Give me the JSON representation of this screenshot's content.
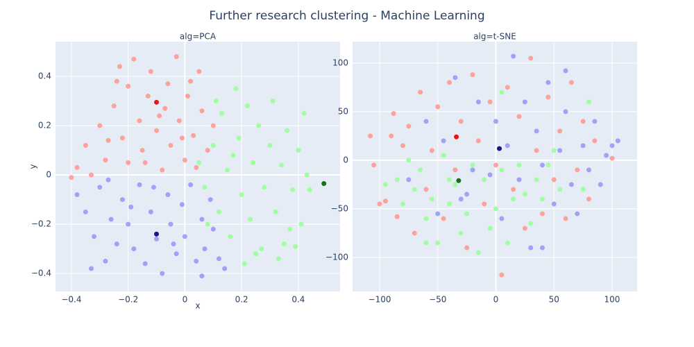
{
  "title": "Further research clustering - Machine Learning",
  "chart_data": [
    {
      "type": "scatter",
      "title": "alg=PCA",
      "x_label": "x",
      "y_label": "y",
      "grid": true,
      "xlim": [
        -0.456,
        0.547
      ],
      "ylim": [
        -0.473,
        0.541
      ],
      "xticks": [
        {
          "value": -0.4,
          "label": "−0.4"
        },
        {
          "value": -0.2,
          "label": "−0.2"
        },
        0,
        0.2,
        0.4
      ],
      "yticks": [
        {
          "value": -0.4,
          "label": "−0.4"
        },
        {
          "value": -0.2,
          "label": "−0.2"
        },
        0,
        0.2,
        0.4
      ],
      "series": [
        {
          "color": "#ff9a8f",
          "x": [
            -0.38,
            -0.35,
            -0.3,
            -0.28,
            -0.25,
            -0.22,
            -0.2,
            -0.2,
            -0.18,
            -0.16,
            -0.15,
            -0.13,
            -0.12,
            -0.1,
            -0.08,
            -0.07,
            -0.06,
            -0.05,
            -0.03,
            -0.02,
            0,
            0.01,
            0.03,
            0.05,
            0.06,
            0.08,
            0.1,
            -0.33,
            -0.27,
            -0.24,
            -0.14,
            -0.09,
            -0.01,
            0.02,
            -0.4,
            -0.23,
            0.04
          ],
          "values": [
            0.03,
            0.12,
            0.2,
            0.06,
            0.28,
            0.15,
            0.36,
            0.05,
            0.47,
            0.22,
            0.1,
            0.32,
            0.42,
            0.18,
            0.02,
            0.27,
            0.37,
            0.12,
            0.48,
            0.22,
            0.06,
            0.32,
            0.16,
            0.42,
            0.26,
            0.1,
            0.2,
            0.0,
            0.14,
            0.38,
            0.05,
            0.24,
            0.15,
            0.38,
            -0.01,
            0.44,
            0.03
          ]
        },
        {
          "color": "#9999f5",
          "x": [
            -0.38,
            -0.35,
            -0.32,
            -0.3,
            -0.28,
            -0.26,
            -0.24,
            -0.22,
            -0.2,
            -0.18,
            -0.16,
            -0.14,
            -0.12,
            -0.1,
            -0.08,
            -0.06,
            -0.05,
            -0.03,
            -0.01,
            0,
            0.02,
            0.04,
            0.06,
            0.07,
            0.09,
            0.1,
            -0.27,
            -0.19,
            -0.11,
            -0.04,
            0.06,
            0.14,
            -0.33,
            0.12
          ],
          "values": [
            -0.08,
            -0.15,
            -0.25,
            -0.05,
            -0.35,
            -0.18,
            -0.28,
            -0.1,
            -0.2,
            -0.3,
            -0.04,
            -0.36,
            -0.15,
            -0.26,
            -0.4,
            -0.08,
            -0.2,
            -0.32,
            -0.12,
            -0.25,
            -0.04,
            -0.35,
            -0.18,
            -0.3,
            -0.1,
            -0.22,
            -0.02,
            -0.13,
            -0.05,
            -0.28,
            -0.41,
            -0.38,
            -0.38,
            -0.34
          ]
        },
        {
          "color": "#99ff99",
          "x": [
            0.05,
            0.07,
            0.1,
            0.12,
            0.13,
            0.15,
            0.16,
            0.18,
            0.19,
            0.2,
            0.22,
            0.23,
            0.24,
            0.26,
            0.27,
            0.28,
            0.3,
            0.31,
            0.32,
            0.33,
            0.34,
            0.36,
            0.37,
            0.38,
            0.4,
            0.41,
            0.42,
            0.43,
            0.44,
            0.25,
            0.17,
            0.11,
            0.21,
            0.08,
            0.35,
            0.39
          ],
          "values": [
            0.05,
            -0.05,
            0.12,
            -0.15,
            0.25,
            0.02,
            -0.25,
            0.35,
            0.15,
            -0.08,
            0.28,
            -0.18,
            0.05,
            0.2,
            -0.3,
            -0.05,
            0.12,
            0.3,
            -0.15,
            -0.34,
            0.04,
            0.18,
            -0.22,
            -0.06,
            0.1,
            -0.2,
            0.25,
            0.0,
            -0.06,
            -0.32,
            0.08,
            0.3,
            -0.36,
            -0.2,
            -0.28,
            -0.29
          ]
        },
        {
          "color": "#e00000",
          "x": [
            -0.1
          ],
          "values": [
            0.295
          ]
        },
        {
          "color": "#000080",
          "x": [
            -0.1
          ],
          "values": [
            -0.24
          ]
        },
        {
          "color": "#006400",
          "x": [
            0.49
          ],
          "values": [
            -0.035
          ]
        }
      ]
    },
    {
      "type": "scatter",
      "title": "alg=t-SNE",
      "grid": true,
      "xlim": [
        -123.3,
        121.5
      ],
      "ylim": [
        -135,
        122
      ],
      "xticks": [
        {
          "value": -100,
          "label": "−100"
        },
        {
          "value": -50,
          "label": "−50"
        },
        0,
        50,
        100
      ],
      "yticks": [
        {
          "value": -100,
          "label": "−100"
        },
        {
          "value": -50,
          "label": "−50"
        },
        0,
        50,
        100
      ],
      "series": [
        {
          "color": "#ff9a8f",
          "x": [
            -108,
            -105,
            -95,
            -88,
            -85,
            -80,
            -75,
            -70,
            -65,
            -60,
            -55,
            -50,
            -45,
            -40,
            -35,
            -30,
            -25,
            -20,
            -15,
            -10,
            -5,
            0,
            5,
            10,
            15,
            20,
            25,
            30,
            35,
            40,
            45,
            50,
            55,
            60,
            65,
            70,
            75,
            80,
            85,
            100,
            -100,
            -90
          ],
          "values": [
            25,
            -5,
            -42,
            48,
            -58,
            15,
            35,
            -75,
            70,
            -30,
            10,
            55,
            -60,
            80,
            -10,
            40,
            -90,
            88,
            20,
            -45,
            60,
            -5,
            -118,
            75,
            -30,
            45,
            -70,
            105,
            10,
            -55,
            65,
            -20,
            30,
            -60,
            80,
            -10,
            40,
            -40,
            20,
            2,
            -45,
            25
          ]
        },
        {
          "color": "#9999f5",
          "x": [
            -75,
            -60,
            -45,
            -35,
            -25,
            -15,
            -5,
            0,
            5,
            10,
            15,
            20,
            25,
            30,
            35,
            40,
            45,
            50,
            55,
            60,
            65,
            70,
            75,
            80,
            85,
            90,
            95,
            100,
            105,
            60,
            40,
            -30,
            -50,
            -20
          ],
          "values": [
            -20,
            40,
            20,
            85,
            -35,
            60,
            -15,
            40,
            -60,
            15,
            107,
            -20,
            60,
            -90,
            30,
            -5,
            80,
            -45,
            10,
            50,
            -25,
            -55,
            15,
            -10,
            40,
            -25,
            5,
            15,
            20,
            92,
            -90,
            -40,
            -55,
            -10
          ]
        },
        {
          "color": "#99ff99",
          "x": [
            -95,
            -85,
            -80,
            -75,
            -70,
            -65,
            -60,
            -55,
            -50,
            -45,
            -40,
            -35,
            -30,
            -25,
            -20,
            -15,
            -10,
            -5,
            0,
            5,
            10,
            15,
            20,
            25,
            30,
            35,
            40,
            45,
            50,
            55,
            -40,
            -60,
            75,
            80,
            5
          ],
          "values": [
            -25,
            -20,
            -45,
            0,
            -30,
            -10,
            -60,
            -40,
            -85,
            5,
            -45,
            -25,
            -75,
            -55,
            -5,
            -95,
            -20,
            -70,
            -50,
            -10,
            -85,
            -40,
            -5,
            -35,
            -65,
            -20,
            -40,
            -5,
            10,
            -30,
            -20,
            -85,
            -30,
            60,
            70
          ]
        },
        {
          "color": "#e00000",
          "x": [
            -34
          ],
          "values": [
            24
          ]
        },
        {
          "color": "#000080",
          "x": [
            3
          ],
          "values": [
            12
          ]
        },
        {
          "color": "#006400",
          "x": [
            -32
          ],
          "values": [
            -21
          ]
        }
      ]
    }
  ]
}
